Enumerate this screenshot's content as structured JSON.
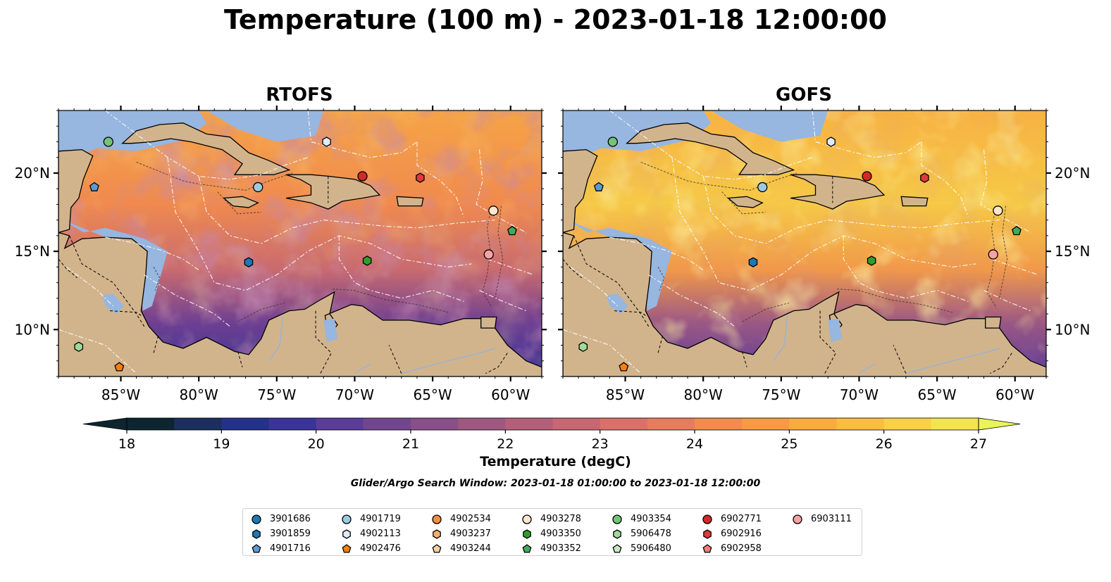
{
  "title": "Temperature (100 m) - 2023-01-18 12:00:00",
  "panels": [
    {
      "title": "RTOFS",
      "id": "rtofs"
    },
    {
      "title": "GOFS",
      "id": "gofs"
    }
  ],
  "axes": {
    "lon_ticks": [
      "85°W",
      "80°W",
      "75°W",
      "70°W",
      "65°W",
      "60°W"
    ],
    "lat_ticks": [
      "20°N",
      "15°N",
      "10°N"
    ],
    "lon_range": [
      -89,
      -58
    ],
    "lat_range": [
      7,
      24
    ]
  },
  "colorbar": {
    "label": "Temperature (degC)",
    "ticks": [
      "18",
      "19",
      "20",
      "21",
      "22",
      "23",
      "24",
      "25",
      "26",
      "27"
    ],
    "range": [
      18,
      27
    ],
    "colors": [
      "#0d2530",
      "#1b2e5e",
      "#24318a",
      "#3b3498",
      "#5a3c99",
      "#72468f",
      "#884f88",
      "#9d5880",
      "#b35f7a",
      "#c66773",
      "#d9706a",
      "#e77c5d",
      "#f18b4e",
      "#f69a44",
      "#f9ab3e",
      "#fbbd3f",
      "#f9d147",
      "#f2e44e",
      "#e9f45a"
    ]
  },
  "search_window": "Glider/Argo Search Window: 2023-01-18 01:00:00 to 2023-01-18 12:00:00",
  "legend": [
    {
      "id": "3901686",
      "shape": "circle",
      "color": "#1f77b4"
    },
    {
      "id": "3901859",
      "shape": "hexagon",
      "color": "#1f77b4"
    },
    {
      "id": "4901716",
      "shape": "pentagon",
      "color": "#5b9bd5"
    },
    {
      "id": "4901719",
      "shape": "circle",
      "color": "#9ecae1"
    },
    {
      "id": "4902113",
      "shape": "hexagon",
      "color": "#deebf7"
    },
    {
      "id": "4902476",
      "shape": "pentagon",
      "color": "#ff7f0e"
    },
    {
      "id": "4902534",
      "shape": "circle",
      "color": "#fd8d3c"
    },
    {
      "id": "4903237",
      "shape": "hexagon",
      "color": "#fdae6b"
    },
    {
      "id": "4903244",
      "shape": "pentagon",
      "color": "#fdd0a2"
    },
    {
      "id": "4903278",
      "shape": "circle",
      "color": "#fee6ce"
    },
    {
      "id": "4903350",
      "shape": "hexagon",
      "color": "#2ca02c"
    },
    {
      "id": "4903352",
      "shape": "pentagon",
      "color": "#41ab5d"
    },
    {
      "id": "4903354",
      "shape": "circle",
      "color": "#74c476"
    },
    {
      "id": "5906478",
      "shape": "hexagon",
      "color": "#a1d99b"
    },
    {
      "id": "5906480",
      "shape": "pentagon",
      "color": "#c7e9c0"
    },
    {
      "id": "6902771",
      "shape": "circle",
      "color": "#d62728"
    },
    {
      "id": "6902916",
      "shape": "hexagon",
      "color": "#e0393b"
    },
    {
      "id": "6902958",
      "shape": "pentagon",
      "color": "#f07c7c"
    },
    {
      "id": "6903111",
      "shape": "circle",
      "color": "#f7a3a3"
    }
  ],
  "markers": [
    {
      "id": "4903354",
      "lon": -85.8,
      "lat": 22.0
    },
    {
      "id": "4902113",
      "lon": -71.8,
      "lat": 22.0
    },
    {
      "id": "4901716",
      "lon": -86.7,
      "lat": 19.1
    },
    {
      "id": "4901719",
      "lon": -76.2,
      "lat": 19.1
    },
    {
      "id": "6902771",
      "lon": -69.5,
      "lat": 19.8
    },
    {
      "id": "6902916",
      "lon": -65.8,
      "lat": 19.7
    },
    {
      "id": "4903278",
      "lon": -61.1,
      "lat": 17.6
    },
    {
      "id": "4903352",
      "lon": -59.9,
      "lat": 16.3
    },
    {
      "id": "3901859",
      "lon": -76.8,
      "lat": 14.3
    },
    {
      "id": "4903350",
      "lon": -69.2,
      "lat": 14.4
    },
    {
      "id": "6903111",
      "lon": -61.4,
      "lat": 14.8
    },
    {
      "id": "5906478",
      "lon": -87.7,
      "lat": 8.9
    },
    {
      "id": "4902476",
      "lon": -85.1,
      "lat": 7.6
    }
  ]
}
